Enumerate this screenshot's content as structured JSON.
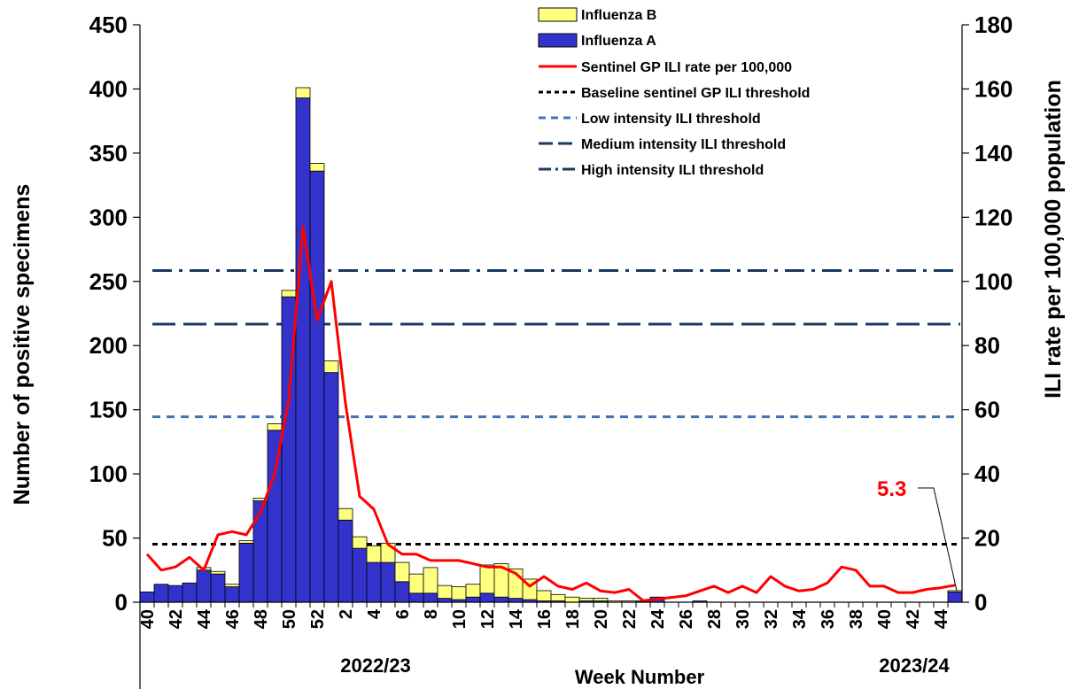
{
  "chart_data": {
    "type": "bar",
    "xlabel": "Week Number",
    "ylabel_left": "Number of positive specimens",
    "ylabel_right": "ILI rate per 100,000 population",
    "ylim_left": [
      0,
      450
    ],
    "ylim_right": [
      0,
      180
    ],
    "yticks_left": [
      "0",
      "50",
      "100",
      "150",
      "200",
      "250",
      "300",
      "350",
      "400",
      "450"
    ],
    "yticks_right": [
      "0",
      "20",
      "40",
      "60",
      "80",
      "100",
      "120",
      "140",
      "160",
      "180"
    ],
    "season_labels": [
      "2022/23",
      "2023/24"
    ],
    "weeks": [
      40,
      41,
      42,
      43,
      44,
      45,
      46,
      47,
      48,
      49,
      50,
      51,
      52,
      1,
      2,
      3,
      4,
      5,
      6,
      7,
      8,
      9,
      10,
      11,
      12,
      13,
      14,
      15,
      16,
      17,
      18,
      19,
      20,
      21,
      22,
      23,
      24,
      25,
      26,
      27,
      28,
      29,
      30,
      31,
      32,
      33,
      34,
      35,
      36,
      37,
      38,
      39,
      40,
      41,
      42,
      43,
      44,
      45
    ],
    "series": [
      {
        "name": "Influenza B",
        "color": "#ffff80",
        "values": [
          0,
          0,
          0,
          0,
          2,
          2,
          2,
          2,
          2,
          5,
          5,
          8,
          6,
          9,
          9,
          9,
          13,
          15,
          15,
          15,
          20,
          10,
          10,
          10,
          22,
          26,
          23,
          16,
          8,
          5,
          4,
          2,
          2,
          1,
          1,
          0,
          0,
          0,
          0,
          0,
          0,
          0,
          0,
          0,
          0,
          0,
          0,
          0,
          0,
          0,
          0,
          0,
          0,
          0,
          0,
          0,
          0,
          1
        ]
      },
      {
        "name": "Influenza A",
        "color": "#3333cc",
        "values": [
          8,
          14,
          13,
          15,
          25,
          22,
          12,
          46,
          79,
          134,
          238,
          393,
          336,
          179,
          64,
          42,
          31,
          31,
          16,
          7,
          7,
          3,
          2,
          4,
          7,
          4,
          3,
          2,
          1,
          1,
          0,
          1,
          1,
          0,
          0,
          1,
          4,
          0,
          0,
          1,
          0,
          0,
          0,
          0,
          0,
          0,
          0,
          0,
          0,
          0,
          0,
          0,
          0,
          0,
          0,
          0,
          0,
          8
        ]
      },
      {
        "name": "Sentinel GP ILI rate per 100,000",
        "color": "#ff0000",
        "values": [
          15,
          10,
          11,
          14,
          10,
          21,
          22,
          21,
          28,
          40,
          63,
          117,
          88,
          100,
          62,
          33,
          29,
          18,
          15,
          15,
          13,
          13,
          13,
          12,
          11,
          11,
          9,
          5,
          8,
          5,
          4,
          6,
          3.5,
          3,
          4,
          0.5,
          1,
          1.5,
          2,
          3.5,
          5,
          3,
          5,
          3,
          8,
          5,
          3.5,
          4,
          6,
          11,
          10,
          5,
          5,
          3,
          3,
          4,
          4.5,
          5.3
        ]
      },
      {
        "name": "Baseline sentinel GP ILI threshold",
        "value": 18.1,
        "color": "#000000"
      },
      {
        "name": "Low intensity ILI threshold",
        "value": 57.8,
        "color": "#3d74b8"
      },
      {
        "name": "Medium intensity ILI threshold",
        "value": 86.7,
        "color": "#1b3863"
      },
      {
        "name": "High intensity ILI threshold",
        "value": 103.4,
        "color": "#1b3863"
      }
    ],
    "annotation": {
      "text": "5.3",
      "color": "#ff0000"
    }
  }
}
